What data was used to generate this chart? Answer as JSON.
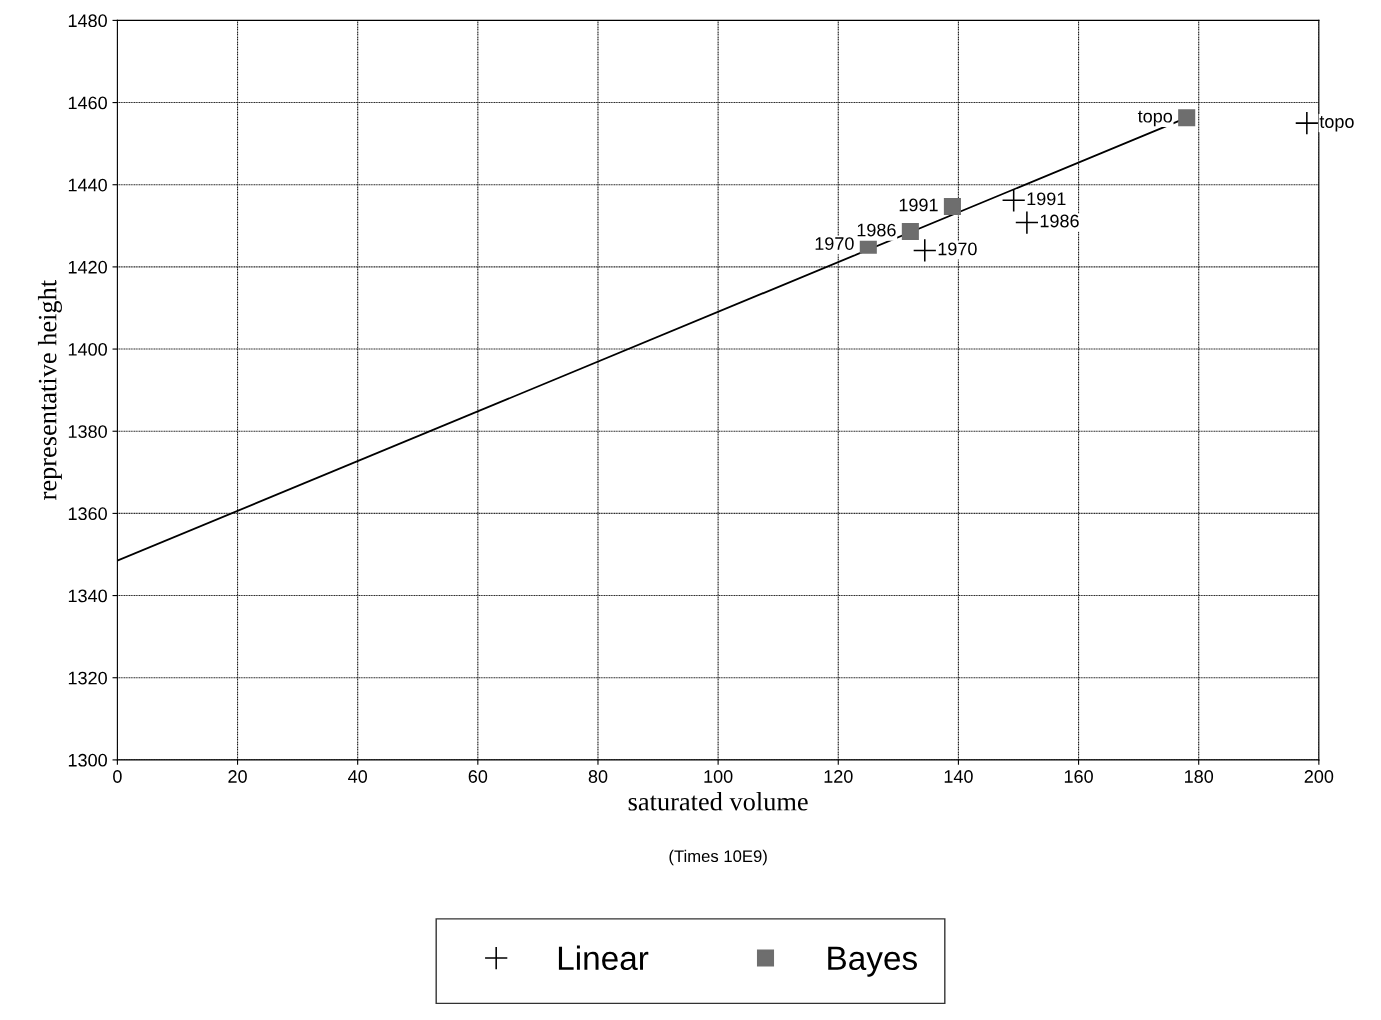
{
  "chart_data": {
    "type": "scatter",
    "xlabel": "saturated volume",
    "ylabel": "representative height",
    "annotations": [
      "(Times 10E9)",
      {
        "text": "1970",
        "x": 134.4,
        "y": 1424
      },
      {
        "text": "1986",
        "x": 151.4,
        "y": 1430.8
      },
      {
        "text": "1991",
        "x": 149.2,
        "y": 1436.2
      },
      {
        "text": "topo",
        "x": 198,
        "y": 1455
      },
      {
        "text": "1970",
        "x": 125,
        "y": 1425.3
      },
      {
        "text": "1986",
        "x": 132,
        "y": 1428.6
      },
      {
        "text": "1991",
        "x": 139,
        "y": 1434.7
      },
      {
        "text": "topo",
        "x": 178,
        "y": 1456.3
      }
    ],
    "xlim": [
      0,
      200
    ],
    "xticks": [
      0,
      20,
      40,
      60,
      80,
      100,
      120,
      140,
      160,
      180,
      200
    ],
    "ylim": [
      1300,
      1480
    ],
    "yticks": [
      1300,
      1320,
      1340,
      1360,
      1380,
      1400,
      1420,
      1440,
      1460,
      1480
    ],
    "grid": true,
    "legend": "bottom",
    "series": [
      {
        "name": "Linear",
        "marker": "cross",
        "color": "#000000",
        "x": [
          134.4,
          151.4,
          149.2,
          198
        ],
        "values": [
          1424,
          1430.8,
          1436.2,
          1455
        ]
      },
      {
        "name": "Bayes",
        "marker": "square",
        "color": "#6e6e6e",
        "x": [
          125,
          132,
          139,
          178
        ],
        "values": [
          1425.3,
          1428.6,
          1434.7,
          1456.3
        ]
      },
      {
        "type": "line",
        "marker": "none",
        "color": "#000000",
        "x": [
          0,
          178
        ],
        "values": [
          1348.5,
          1456.3
        ]
      }
    ]
  }
}
